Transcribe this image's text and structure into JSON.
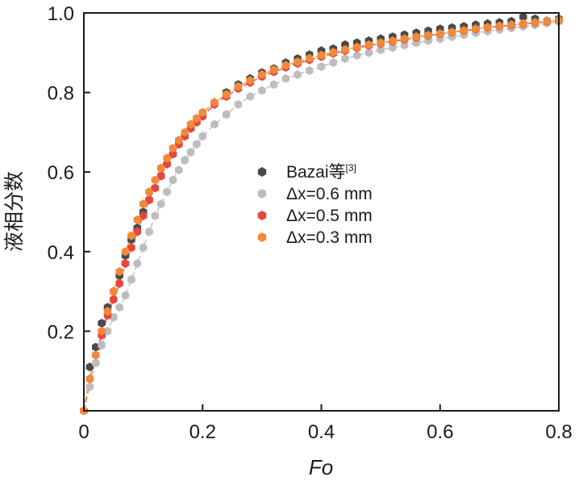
{
  "chart_data": {
    "type": "scatter",
    "title": "",
    "xlabel": "Fo",
    "ylabel": "液相分数",
    "xlim": [
      0,
      0.8
    ],
    "ylim": [
      0,
      1.0
    ],
    "xticks": [
      0,
      0.2,
      0.4,
      0.6,
      0.8
    ],
    "xtick_labels": [
      "0",
      "0.2",
      "0.4",
      "0.6",
      "0.8"
    ],
    "yticks": [
      0.2,
      0.4,
      0.6,
      0.8,
      1.0
    ],
    "ytick_labels": [
      "0.2",
      "0.4",
      "0.6",
      "0.8",
      "1.0"
    ],
    "grid": false,
    "legend_position": "center",
    "series": [
      {
        "name": "Bazai等",
        "name_main": "Bazai等",
        "name_sup": "[3]",
        "color": "#4a4a4a",
        "line": false,
        "x": [
          0.0,
          0.01,
          0.02,
          0.03,
          0.04,
          0.05,
          0.06,
          0.07,
          0.08,
          0.09,
          0.1,
          0.11,
          0.12,
          0.13,
          0.14,
          0.15,
          0.16,
          0.17,
          0.18,
          0.19,
          0.2,
          0.22,
          0.24,
          0.26,
          0.28,
          0.3,
          0.32,
          0.34,
          0.36,
          0.38,
          0.4,
          0.42,
          0.44,
          0.46,
          0.48,
          0.5,
          0.52,
          0.54,
          0.56,
          0.58,
          0.6,
          0.62,
          0.64,
          0.66,
          0.68,
          0.7,
          0.72,
          0.74,
          0.76,
          0.78,
          0.8
        ],
        "y": [
          0.0,
          0.11,
          0.16,
          0.22,
          0.26,
          0.3,
          0.34,
          0.39,
          0.43,
          0.46,
          0.5,
          0.53,
          0.56,
          0.59,
          0.62,
          0.645,
          0.67,
          0.69,
          0.71,
          0.73,
          0.745,
          0.775,
          0.8,
          0.82,
          0.835,
          0.85,
          0.86,
          0.875,
          0.885,
          0.895,
          0.905,
          0.91,
          0.92,
          0.925,
          0.93,
          0.935,
          0.94,
          0.945,
          0.95,
          0.955,
          0.96,
          0.963,
          0.966,
          0.97,
          0.973,
          0.976,
          0.979,
          0.99,
          0.985,
          0.98,
          0.985
        ]
      },
      {
        "name": "Δx=0.6 mm",
        "color": "#bdbdbd",
        "line": true,
        "x": [
          0.0,
          0.01,
          0.02,
          0.03,
          0.04,
          0.05,
          0.06,
          0.07,
          0.08,
          0.09,
          0.1,
          0.11,
          0.12,
          0.13,
          0.14,
          0.15,
          0.16,
          0.17,
          0.18,
          0.19,
          0.2,
          0.22,
          0.24,
          0.26,
          0.28,
          0.3,
          0.32,
          0.34,
          0.36,
          0.38,
          0.4,
          0.42,
          0.44,
          0.46,
          0.48,
          0.5,
          0.52,
          0.54,
          0.56,
          0.58,
          0.6,
          0.62,
          0.64,
          0.66,
          0.68,
          0.7,
          0.72,
          0.74,
          0.76,
          0.78,
          0.8
        ],
        "y": [
          0.0,
          0.06,
          0.12,
          0.165,
          0.2,
          0.235,
          0.26,
          0.29,
          0.33,
          0.37,
          0.41,
          0.45,
          0.49,
          0.52,
          0.55,
          0.58,
          0.605,
          0.63,
          0.65,
          0.67,
          0.69,
          0.72,
          0.745,
          0.77,
          0.79,
          0.805,
          0.82,
          0.835,
          0.845,
          0.855,
          0.865,
          0.875,
          0.885,
          0.893,
          0.9,
          0.907,
          0.913,
          0.919,
          0.925,
          0.93,
          0.935,
          0.94,
          0.945,
          0.95,
          0.954,
          0.958,
          0.962,
          0.966,
          0.97,
          0.974,
          0.978
        ]
      },
      {
        "name": "Δx=0.5 mm",
        "color": "#e8453c",
        "line": true,
        "x": [
          0.0,
          0.01,
          0.02,
          0.03,
          0.04,
          0.05,
          0.06,
          0.07,
          0.08,
          0.09,
          0.1,
          0.11,
          0.12,
          0.13,
          0.14,
          0.15,
          0.16,
          0.17,
          0.18,
          0.19,
          0.2,
          0.22,
          0.24,
          0.26,
          0.28,
          0.3,
          0.32,
          0.34,
          0.36,
          0.38,
          0.4,
          0.42,
          0.44,
          0.46,
          0.48,
          0.5,
          0.52,
          0.54,
          0.56,
          0.58,
          0.6,
          0.62,
          0.64,
          0.66,
          0.68,
          0.7,
          0.72,
          0.74,
          0.76,
          0.78,
          0.8
        ],
        "y": [
          0.0,
          0.08,
          0.14,
          0.19,
          0.24,
          0.28,
          0.32,
          0.37,
          0.41,
          0.45,
          0.49,
          0.53,
          0.56,
          0.59,
          0.62,
          0.645,
          0.67,
          0.69,
          0.71,
          0.725,
          0.74,
          0.77,
          0.79,
          0.81,
          0.825,
          0.84,
          0.852,
          0.863,
          0.873,
          0.882,
          0.89,
          0.898,
          0.905,
          0.912,
          0.918,
          0.923,
          0.928,
          0.933,
          0.938,
          0.943,
          0.947,
          0.951,
          0.955,
          0.959,
          0.963,
          0.966,
          0.969,
          0.972,
          0.975,
          0.978,
          0.981
        ]
      },
      {
        "name": "Δx=0.3 mm",
        "color": "#f08a3a",
        "line": true,
        "x": [
          0.0,
          0.01,
          0.02,
          0.03,
          0.04,
          0.05,
          0.06,
          0.07,
          0.08,
          0.09,
          0.1,
          0.11,
          0.12,
          0.13,
          0.14,
          0.15,
          0.16,
          0.17,
          0.18,
          0.19,
          0.2,
          0.22,
          0.24,
          0.26,
          0.28,
          0.3,
          0.32,
          0.34,
          0.36,
          0.38,
          0.4,
          0.42,
          0.44,
          0.46,
          0.48,
          0.5,
          0.52,
          0.54,
          0.56,
          0.58,
          0.6,
          0.62,
          0.64,
          0.66,
          0.68,
          0.7,
          0.72,
          0.74,
          0.76,
          0.78,
          0.8
        ],
        "y": [
          0.0,
          0.08,
          0.14,
          0.2,
          0.25,
          0.3,
          0.35,
          0.4,
          0.44,
          0.48,
          0.52,
          0.55,
          0.58,
          0.61,
          0.635,
          0.66,
          0.68,
          0.7,
          0.72,
          0.735,
          0.75,
          0.775,
          0.795,
          0.815,
          0.83,
          0.845,
          0.857,
          0.868,
          0.877,
          0.886,
          0.894,
          0.901,
          0.908,
          0.914,
          0.92,
          0.925,
          0.93,
          0.935,
          0.94,
          0.944,
          0.948,
          0.952,
          0.956,
          0.96,
          0.964,
          0.967,
          0.97,
          0.973,
          0.976,
          0.979,
          0.982
        ]
      }
    ]
  }
}
